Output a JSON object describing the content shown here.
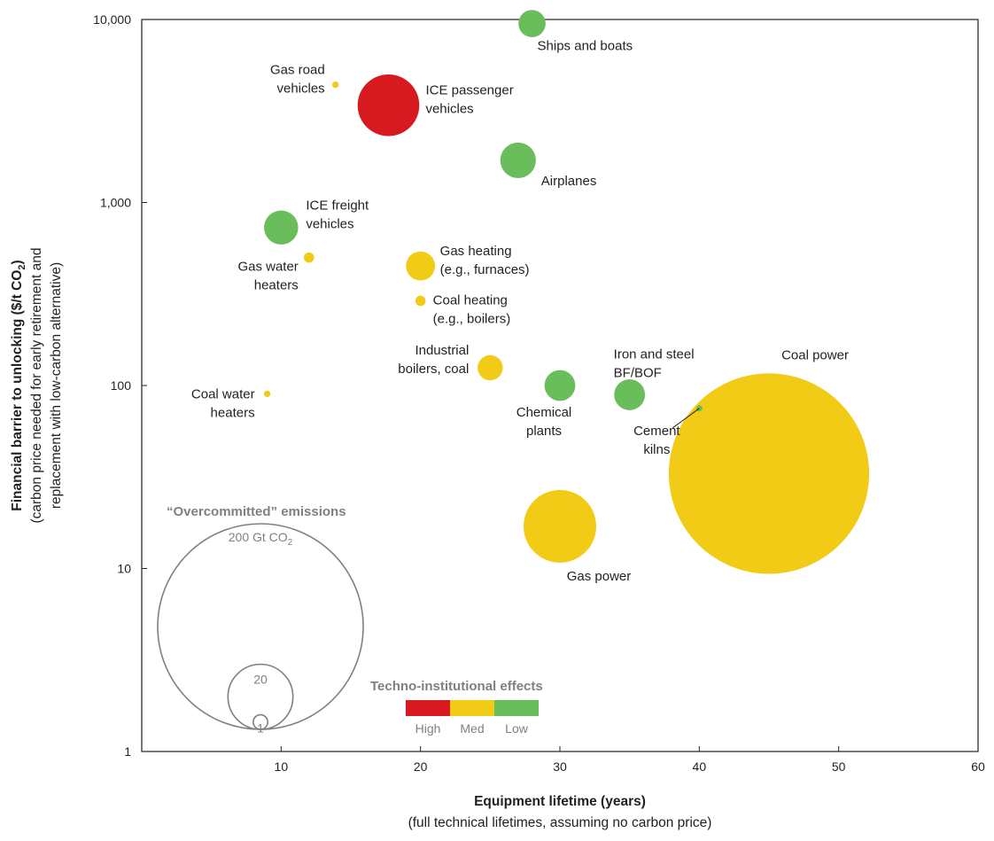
{
  "chart_data": {
    "type": "scatter",
    "xlabel": "Equipment lifetime (years)",
    "xlabel_sub": "(full technical lifetimes, assuming no carbon price)",
    "ylabel": "Financial barrier to unlocking ($/t CO",
    "ylabel_sub_script": "2",
    "ylabel_close": ")",
    "ylabel_line2": "(carbon price needed for early retirement and",
    "ylabel_line3": "replacement with low-carbon alternative)",
    "xlim": [
      0,
      60
    ],
    "ylim": [
      1,
      10000
    ],
    "y_scale": "log",
    "x_ticks": [
      "10",
      "20",
      "30",
      "40",
      "50",
      "60"
    ],
    "y_ticks": [
      "1",
      "10",
      "100",
      "1,000",
      "10,000"
    ],
    "colors": {
      "High": "#d71920",
      "Med": "#f2cb17",
      "Low": "#6abd5b"
    },
    "points": [
      {
        "name": "Ships and boats",
        "lines": [
          "Ships and boats"
        ],
        "x": 28,
        "y": 9500,
        "effect": "Low",
        "emissions": 3.5
      },
      {
        "name": "Gas road vehicles",
        "lines": [
          "Gas road",
          "vehicles"
        ],
        "x": 13.9,
        "y": 4400,
        "effect": "Med",
        "emissions": 0.2
      },
      {
        "name": "ICE passenger vehicles",
        "lines": [
          "ICE passenger",
          "vehicles"
        ],
        "x": 17.7,
        "y": 3400,
        "effect": "High",
        "emissions": 18
      },
      {
        "name": "Airplanes",
        "lines": [
          "Airplanes"
        ],
        "x": 27,
        "y": 1700,
        "effect": "Low",
        "emissions": 6
      },
      {
        "name": "ICE freight vehicles",
        "lines": [
          "ICE freight",
          "vehicles"
        ],
        "x": 10,
        "y": 730,
        "effect": "Low",
        "emissions": 5.5
      },
      {
        "name": "Gas water heaters",
        "lines": [
          "Gas water",
          "heaters"
        ],
        "x": 12,
        "y": 500,
        "effect": "Med",
        "emissions": 0.5
      },
      {
        "name": "Gas heating (e.g., furnaces)",
        "lines": [
          "Gas heating",
          "(e.g., furnaces)"
        ],
        "x": 20,
        "y": 450,
        "effect": "Med",
        "emissions": 4
      },
      {
        "name": "Coal heating (e.g., boilers)",
        "lines": [
          "Coal heating",
          "(e.g., boilers)"
        ],
        "x": 20,
        "y": 290,
        "effect": "Med",
        "emissions": 0.5
      },
      {
        "name": "Industrial boilers, coal",
        "lines": [
          "Industrial",
          "boilers, coal"
        ],
        "x": 25,
        "y": 125,
        "effect": "Med",
        "emissions": 3
      },
      {
        "name": "Chemical plants",
        "lines": [
          "Chemical",
          "plants"
        ],
        "x": 30,
        "y": 100,
        "effect": "Low",
        "emissions": 4.5
      },
      {
        "name": "Iron and steel BF/BOF",
        "lines": [
          "Iron and steel",
          "BF/BOF"
        ],
        "x": 35,
        "y": 89,
        "effect": "Low",
        "emissions": 4.5
      },
      {
        "name": "Coal water heaters",
        "lines": [
          "Coal water",
          "heaters"
        ],
        "x": 9,
        "y": 90,
        "effect": "Med",
        "emissions": 0.2
      },
      {
        "name": "Cement kilns",
        "lines": [
          "Cement",
          "kilns"
        ],
        "x": 40,
        "y": 75,
        "effect": "Low",
        "emissions": 0.15
      },
      {
        "name": "Gas power",
        "lines": [
          "Gas power"
        ],
        "x": 30,
        "y": 17,
        "effect": "Med",
        "emissions": 25
      },
      {
        "name": "Coal power",
        "lines": [
          "Coal power"
        ],
        "x": 45,
        "y": 33,
        "effect": "Med",
        "emissions": 190
      }
    ],
    "legend_size": {
      "title": "“Overcommitted” emissions",
      "items": [
        {
          "label": "200 Gt CO",
          "sub": "2",
          "value": 200
        },
        {
          "label": "20",
          "value": 20
        },
        {
          "label": "1",
          "value": 1
        }
      ]
    },
    "legend_color": {
      "title": "Techno-institutional effects",
      "items": [
        {
          "label": "High",
          "color": "#d71920"
        },
        {
          "label": "Med",
          "color": "#f2cb17"
        },
        {
          "label": "Low",
          "color": "#6abd5b"
        }
      ]
    }
  }
}
